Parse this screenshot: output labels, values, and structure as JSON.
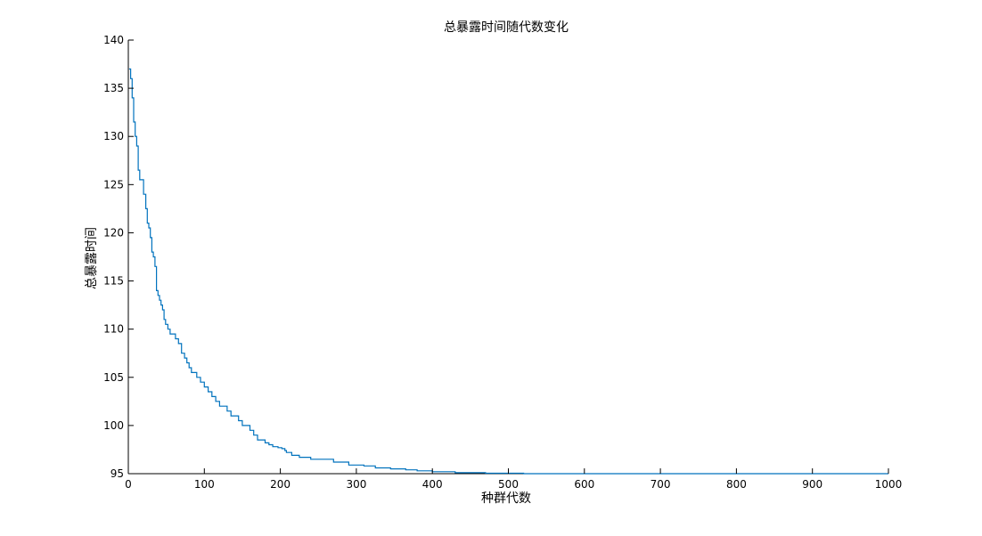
{
  "chart_data": {
    "type": "line",
    "title": "总暴露时间随代数变化",
    "xlabel": "种群代数",
    "ylabel": "总暴露时间",
    "xlim": [
      0,
      1000
    ],
    "ylim": [
      95,
      140
    ],
    "xticks": [
      0,
      100,
      200,
      300,
      400,
      500,
      600,
      700,
      800,
      900,
      1000
    ],
    "yticks": [
      95,
      100,
      105,
      110,
      115,
      120,
      125,
      130,
      135,
      140
    ],
    "grid": false,
    "box": "left-bottom",
    "series": [
      {
        "color": "#0072BD",
        "step": true,
        "x": [
          1,
          3,
          5,
          7,
          9,
          11,
          13,
          15,
          17,
          20,
          23,
          25,
          27,
          29,
          31,
          33,
          35,
          37,
          39,
          41,
          43,
          45,
          47,
          49,
          52,
          55,
          58,
          62,
          66,
          70,
          74,
          77,
          80,
          83,
          86,
          90,
          95,
          100,
          105,
          110,
          115,
          120,
          125,
          130,
          135,
          140,
          145,
          150,
          155,
          160,
          165,
          170,
          180,
          185,
          190,
          197,
          200,
          202,
          204,
          206,
          208,
          210,
          215,
          225,
          240,
          270,
          290,
          310,
          325,
          345,
          365,
          380,
          400,
          425,
          430,
          450,
          460,
          470,
          490,
          520,
          540,
          1000
        ],
        "y": [
          137.0,
          136.0,
          134.0,
          131.5,
          130.0,
          129.0,
          126.5,
          125.5,
          125.5,
          124.0,
          122.5,
          121.0,
          120.5,
          119.5,
          118.0,
          117.5,
          116.5,
          114.0,
          113.5,
          113.0,
          112.5,
          112.0,
          111.0,
          110.5,
          110.0,
          109.5,
          109.5,
          109.0,
          108.5,
          107.5,
          107.0,
          106.5,
          106.0,
          105.5,
          105.5,
          105.0,
          104.5,
          104.0,
          103.5,
          103.0,
          102.5,
          102.0,
          102.0,
          101.5,
          101.0,
          101.0,
          100.5,
          100.0,
          100.0,
          99.5,
          99.0,
          98.5,
          98.2,
          98.0,
          97.8,
          97.7,
          97.7,
          97.6,
          97.6,
          97.4,
          97.2,
          97.2,
          96.9,
          96.7,
          96.5,
          96.2,
          95.9,
          95.8,
          95.6,
          95.5,
          95.4,
          95.3,
          95.2,
          95.2,
          95.1,
          95.1,
          95.1,
          95.05,
          95.05,
          95.0,
          95.0,
          95.0
        ]
      }
    ]
  }
}
